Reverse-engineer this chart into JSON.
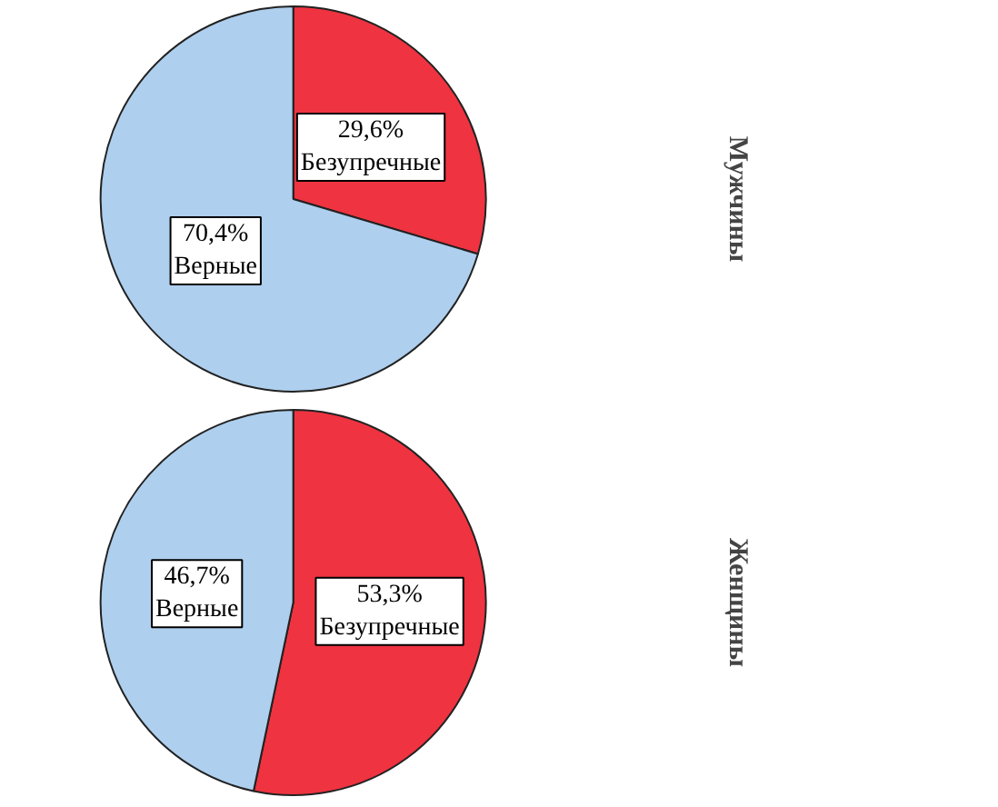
{
  "chart_data": [
    {
      "type": "pie",
      "title": "Мужчины",
      "categories": [
        "Безупречные",
        "Верные"
      ],
      "values": [
        29.6,
        70.4
      ],
      "colors": [
        "#ef3340",
        "#aecfee"
      ],
      "value_labels": [
        "29,6%",
        "70,4%"
      ]
    },
    {
      "type": "pie",
      "title": "Женщины",
      "categories": [
        "Безупречные",
        "Верные"
      ],
      "values": [
        53.3,
        46.7
      ],
      "colors": [
        "#ef3340",
        "#aecfee"
      ],
      "value_labels": [
        "53,3%",
        "46,7%"
      ]
    }
  ]
}
